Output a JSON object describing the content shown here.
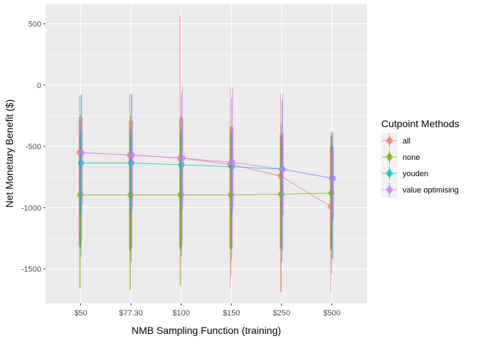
{
  "chart_data": {
    "type": "line",
    "xlabel": "NMB Sampling Function (training)",
    "ylabel": "Net Monetary Benefit ($)",
    "categories": [
      "$50",
      "$77.30",
      "$100",
      "$150",
      "$250",
      "$500"
    ],
    "ylim": [
      -1780,
      660
    ],
    "yticks": [
      500,
      0,
      -500,
      -1000,
      -1500
    ],
    "ytick_labels": [
      "500",
      "0",
      "-500",
      "-1000",
      "-1500"
    ],
    "grid": true,
    "legend": {
      "title": "Cutpoint Methods",
      "placement": "right"
    },
    "series": [
      {
        "name": "all",
        "color": "#F8766D",
        "values": [
          -550,
          -570,
          -595,
          -645,
          -740,
          -990
        ],
        "inner_low": [
          -1320,
          -1350,
          -1320,
          -1330,
          -1340,
          -1350
        ],
        "inner_high": [
          -260,
          -290,
          -270,
          -340,
          -400,
          -500
        ],
        "outer_low": [
          -1650,
          -1670,
          -1630,
          -1650,
          -1680,
          -1690
        ],
        "outer_high": [
          -80,
          -70,
          570,
          -20,
          -70,
          -380
        ]
      },
      {
        "name": "none",
        "color": "#7CAE00",
        "values": [
          -895,
          -895,
          -895,
          -895,
          -890,
          -880
        ],
        "inner_low": [
          -1320,
          -1350,
          -1340,
          -1340,
          -1330,
          -1340
        ],
        "inner_high": [
          -400,
          -400,
          -400,
          -400,
          -420,
          -420
        ],
        "outer_low": [
          -1660,
          -1670,
          -1640,
          -1560,
          -1690,
          -1540
        ],
        "outer_high": [
          -240,
          -250,
          -250,
          -330,
          -320,
          -400
        ]
      },
      {
        "name": "youden",
        "color": "#00BFC4",
        "values": [
          -635,
          -635,
          -650,
          -665,
          -685,
          -760
        ],
        "inner_low": [
          -1030,
          -1040,
          -1020,
          -1040,
          -1060,
          -1100
        ],
        "inner_high": [
          -360,
          -360,
          -360,
          -380,
          -400,
          -500
        ],
        "outer_low": [
          -1400,
          -1440,
          -1400,
          -1420,
          -1440,
          -1420
        ],
        "outer_high": [
          -80,
          -70,
          -60,
          -100,
          -120,
          -380
        ]
      },
      {
        "name": "value optimising",
        "color": "#C77CFF",
        "values": [
          -550,
          -570,
          -595,
          -630,
          -685,
          -760
        ],
        "inner_low": [
          -970,
          -1000,
          -1010,
          -1010,
          -1060,
          -1100
        ],
        "inner_high": [
          -270,
          -290,
          -270,
          -340,
          -390,
          -500
        ],
        "outer_low": [
          -1280,
          -1320,
          -1300,
          -1330,
          -1360,
          -1420
        ],
        "outer_high": [
          -70,
          -70,
          0,
          -20,
          -70,
          -380
        ]
      }
    ]
  }
}
